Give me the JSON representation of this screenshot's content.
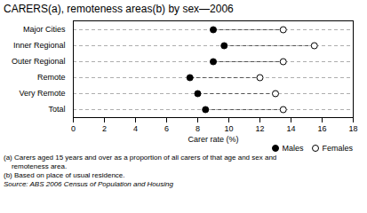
{
  "chart_data": {
    "type": "dot",
    "title": "CARERS(a), remoteness areas(b) by sex—2006",
    "categories": [
      "Major Cities",
      "Inner Regional",
      "Outer Regional",
      "Remote",
      "Very Remote",
      "Total"
    ],
    "series": [
      {
        "name": "Males",
        "color": "#000000",
        "values": [
          9.0,
          9.7,
          9.0,
          7.5,
          8.0,
          8.5
        ]
      },
      {
        "name": "Females",
        "color": "#ffffff",
        "values": [
          13.5,
          15.5,
          13.5,
          12.0,
          13.0,
          13.5
        ]
      }
    ],
    "x_label": "Carer rate (%)",
    "xlim": [
      0,
      18
    ],
    "xticks": [
      0,
      2,
      4,
      6,
      8,
      10,
      12,
      14,
      16,
      18
    ],
    "grid": "y",
    "legend": "lower right",
    "annotations": [
      "(a) Carers aged 15 years and over as a proportion of all carers of that age and sex and",
      "    remoteness area.",
      "(b) Based on place of usual residence."
    ],
    "source": "Source: ABS 2006 Census of Population and Housing"
  }
}
